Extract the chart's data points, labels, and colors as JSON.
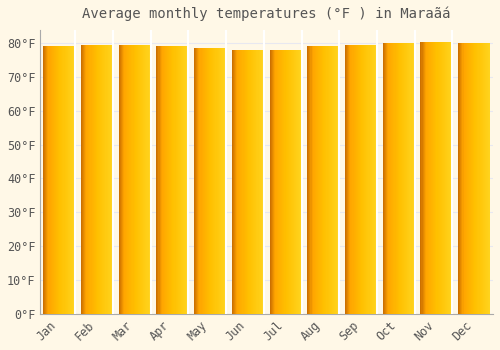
{
  "title": "Average monthly temperatures (°F ) in Maraãá",
  "months": [
    "Jan",
    "Feb",
    "Mar",
    "Apr",
    "May",
    "Jun",
    "Jul",
    "Aug",
    "Sep",
    "Oct",
    "Nov",
    "Dec"
  ],
  "values": [
    79.0,
    79.3,
    79.5,
    79.0,
    78.6,
    78.1,
    77.9,
    79.0,
    79.5,
    80.1,
    80.2,
    79.9
  ],
  "bar_color_main": "#FFA500",
  "bar_color_left": "#CC7000",
  "bar_color_right": "#FFD060",
  "background_color": "#FFF8E7",
  "grid_color": "#E8E8F0",
  "text_color": "#555555",
  "ylim": [
    0,
    84
  ],
  "yticks": [
    0,
    10,
    20,
    30,
    40,
    50,
    60,
    70,
    80
  ],
  "title_fontsize": 10,
  "tick_fontsize": 8.5,
  "bar_width": 0.85
}
